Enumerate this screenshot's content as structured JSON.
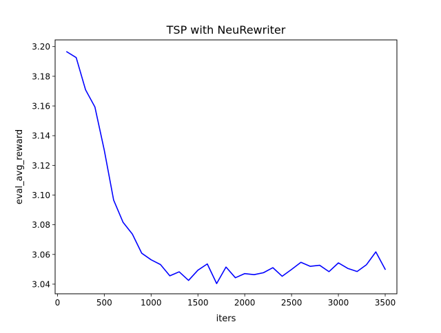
{
  "chart_data": {
    "type": "line",
    "title": "TSP with NeuRewriter",
    "xlabel": "iters",
    "ylabel": "eval_avg_reward",
    "xlim": [
      -25,
      3625
    ],
    "ylim": [
      3.0335,
      3.2045
    ],
    "xticks": [
      0,
      500,
      1000,
      1500,
      2000,
      2500,
      3000,
      3500
    ],
    "xtick_labels": [
      "0",
      "500",
      "1000",
      "1500",
      "2000",
      "2500",
      "3000",
      "3500"
    ],
    "yticks": [
      3.04,
      3.06,
      3.08,
      3.1,
      3.12,
      3.14,
      3.16,
      3.18,
      3.2
    ],
    "ytick_labels": [
      "3.04",
      "3.06",
      "3.08",
      "3.10",
      "3.12",
      "3.14",
      "3.16",
      "3.18",
      "3.20"
    ],
    "grid": false,
    "legend": "none",
    "series": [
      {
        "color": "#0000ff",
        "x": [
          100,
          200,
          300,
          400,
          500,
          600,
          700,
          800,
          900,
          1000,
          1100,
          1200,
          1300,
          1400,
          1500,
          1600,
          1700,
          1800,
          1900,
          2000,
          2100,
          2200,
          2300,
          2400,
          2500,
          2600,
          2700,
          2800,
          2900,
          3000,
          3100,
          3200,
          3300,
          3400,
          3500
        ],
        "y": [
          3.1965,
          3.1926,
          3.1709,
          3.1593,
          3.1302,
          3.0966,
          3.0817,
          3.0737,
          3.0608,
          3.0564,
          3.0532,
          3.0456,
          3.0483,
          3.0425,
          3.0494,
          3.0536,
          3.0404,
          3.0515,
          3.0443,
          3.0471,
          3.0464,
          3.0477,
          3.0511,
          3.0453,
          3.0499,
          3.0547,
          3.052,
          3.0527,
          3.0484,
          3.0543,
          3.0506,
          3.0485,
          3.0531,
          3.0617,
          3.05
        ]
      }
    ]
  }
}
